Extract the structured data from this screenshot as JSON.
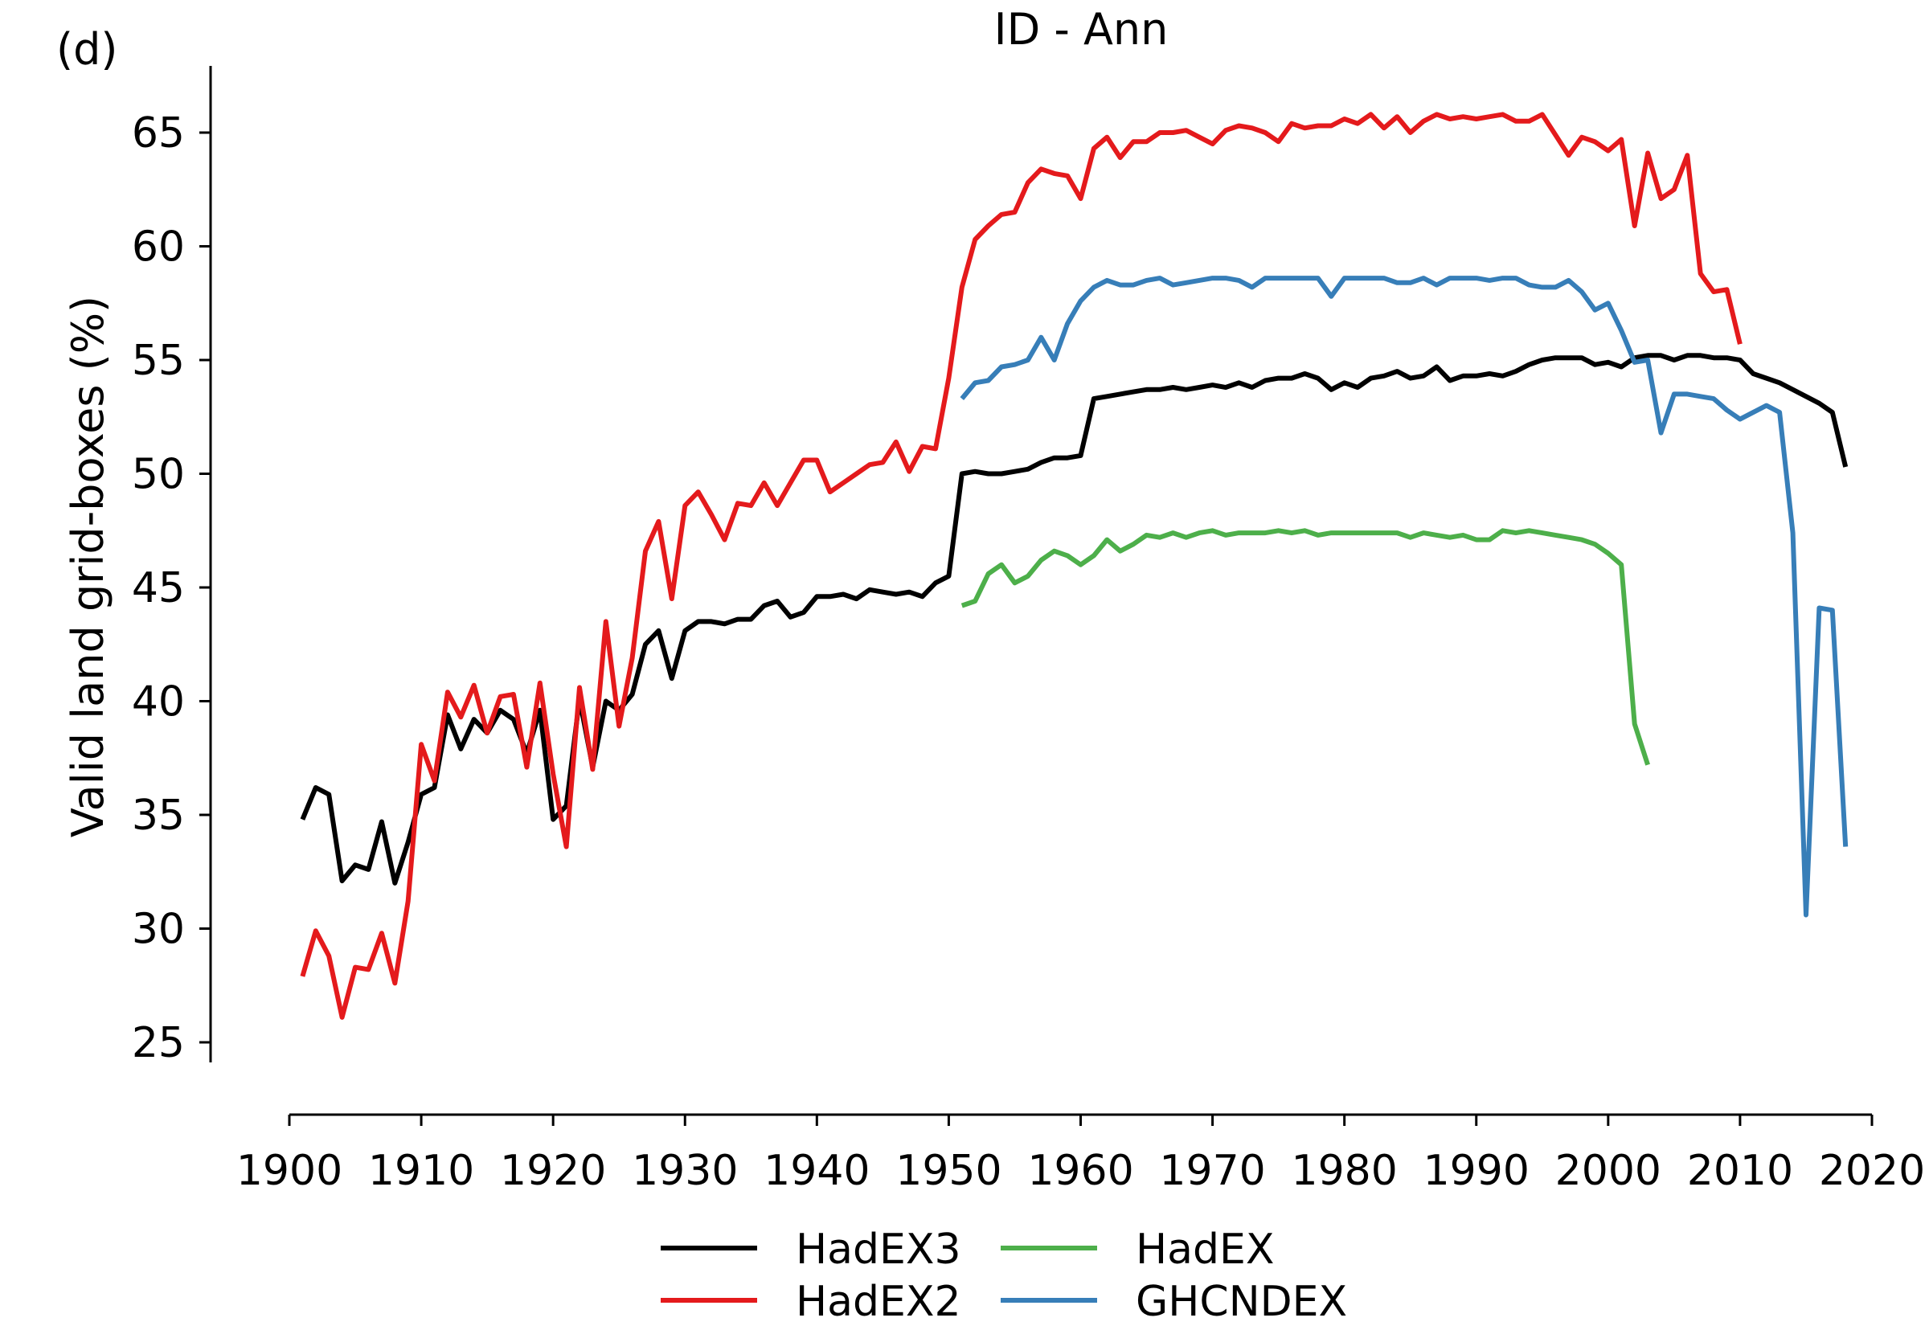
{
  "chart_data": {
    "type": "line",
    "panel_label": "(d)",
    "title": "ID - Ann",
    "xlabel": "",
    "ylabel": "Valid land grid-boxes (%)",
    "xlim": [
      1900,
      2020
    ],
    "ylim": [
      24.5,
      67.5
    ],
    "xticks": [
      1900,
      1910,
      1920,
      1930,
      1940,
      1950,
      1960,
      1970,
      1980,
      1990,
      2000,
      2010,
      2020
    ],
    "yticks": [
      25,
      30,
      35,
      40,
      45,
      50,
      55,
      60,
      65
    ],
    "grid": false,
    "legend_position": "bottom-center, two columns",
    "series": [
      {
        "name": "HadEX3",
        "color": "#000000",
        "x": [
          1901,
          1902,
          1903,
          1904,
          1905,
          1906,
          1907,
          1908,
          1909,
          1910,
          1911,
          1912,
          1913,
          1914,
          1915,
          1916,
          1917,
          1918,
          1919,
          1920,
          1921,
          1922,
          1923,
          1924,
          1925,
          1926,
          1927,
          1928,
          1929,
          1930,
          1931,
          1932,
          1933,
          1934,
          1935,
          1936,
          1937,
          1938,
          1939,
          1940,
          1941,
          1942,
          1943,
          1944,
          1945,
          1946,
          1947,
          1948,
          1949,
          1950,
          1951,
          1952,
          1953,
          1954,
          1955,
          1956,
          1957,
          1958,
          1959,
          1960,
          1961,
          1962,
          1963,
          1964,
          1965,
          1966,
          1967,
          1968,
          1969,
          1970,
          1971,
          1972,
          1973,
          1974,
          1975,
          1976,
          1977,
          1978,
          1979,
          1980,
          1981,
          1982,
          1983,
          1984,
          1985,
          1986,
          1987,
          1988,
          1989,
          1990,
          1991,
          1992,
          1993,
          1994,
          1995,
          1996,
          1997,
          1998,
          1999,
          2000,
          2001,
          2002,
          2003,
          2004,
          2005,
          2006,
          2007,
          2008,
          2009,
          2010,
          2011,
          2012,
          2013,
          2014,
          2015,
          2016,
          2017,
          2018
        ],
        "y": [
          34.8,
          36.2,
          35.9,
          32.1,
          32.8,
          32.6,
          34.7,
          32.0,
          33.8,
          35.9,
          36.2,
          39.4,
          37.9,
          39.2,
          38.6,
          39.6,
          39.2,
          37.7,
          39.6,
          34.8,
          35.4,
          40.1,
          37.1,
          40.0,
          39.6,
          40.3,
          42.5,
          43.1,
          41.0,
          43.1,
          43.5,
          43.5,
          43.4,
          43.6,
          43.6,
          44.2,
          44.4,
          43.7,
          43.9,
          44.6,
          44.6,
          44.7,
          44.5,
          44.9,
          44.8,
          44.7,
          44.8,
          44.6,
          45.2,
          45.5,
          50.0,
          50.1,
          50.0,
          50.0,
          50.1,
          50.2,
          50.5,
          50.7,
          50.7,
          50.8,
          53.3,
          53.4,
          53.5,
          53.6,
          53.7,
          53.7,
          53.8,
          53.7,
          53.8,
          53.9,
          53.8,
          54.0,
          53.8,
          54.1,
          54.2,
          54.2,
          54.4,
          54.2,
          53.7,
          54.0,
          53.8,
          54.2,
          54.3,
          54.5,
          54.2,
          54.3,
          54.7,
          54.1,
          54.3,
          54.3,
          54.4,
          54.3,
          54.5,
          54.8,
          55.0,
          55.1,
          55.1,
          55.1,
          54.8,
          54.9,
          54.7,
          55.1,
          55.2,
          55.2,
          55.0,
          55.2,
          55.2,
          55.1,
          55.1,
          55.0,
          54.4,
          54.2,
          54.0,
          53.7,
          53.4,
          53.1,
          52.7,
          50.3
        ]
      },
      {
        "name": "HadEX2",
        "color": "#e41a1c",
        "x": [
          1901,
          1902,
          1903,
          1904,
          1905,
          1906,
          1907,
          1908,
          1909,
          1910,
          1911,
          1912,
          1913,
          1914,
          1915,
          1916,
          1917,
          1918,
          1919,
          1920,
          1921,
          1922,
          1923,
          1924,
          1925,
          1926,
          1927,
          1928,
          1929,
          1930,
          1931,
          1932,
          1933,
          1934,
          1935,
          1936,
          1937,
          1938,
          1939,
          1940,
          1941,
          1942,
          1943,
          1944,
          1945,
          1946,
          1947,
          1948,
          1949,
          1950,
          1951,
          1952,
          1953,
          1954,
          1955,
          1956,
          1957,
          1958,
          1959,
          1960,
          1961,
          1962,
          1963,
          1964,
          1965,
          1966,
          1967,
          1968,
          1969,
          1970,
          1971,
          1972,
          1973,
          1974,
          1975,
          1976,
          1977,
          1978,
          1979,
          1980,
          1981,
          1982,
          1983,
          1984,
          1985,
          1986,
          1987,
          1988,
          1989,
          1990,
          1991,
          1992,
          1993,
          1994,
          1995,
          1996,
          1997,
          1998,
          1999,
          2000,
          2001,
          2002,
          2003,
          2004,
          2005,
          2006,
          2007,
          2008,
          2009,
          2010
        ],
        "y": [
          27.9,
          29.9,
          28.8,
          26.1,
          28.3,
          28.2,
          29.8,
          27.6,
          31.2,
          38.1,
          36.5,
          40.4,
          39.3,
          40.7,
          38.6,
          40.2,
          40.3,
          37.1,
          40.8,
          36.8,
          33.6,
          40.6,
          37.0,
          43.5,
          38.9,
          41.9,
          46.6,
          47.9,
          44.5,
          48.6,
          49.2,
          48.2,
          47.1,
          48.7,
          48.6,
          49.6,
          48.6,
          49.6,
          50.6,
          50.6,
          49.2,
          49.6,
          50.0,
          50.4,
          50.5,
          51.4,
          50.1,
          51.2,
          51.1,
          54.2,
          58.2,
          60.3,
          60.9,
          61.4,
          61.5,
          62.8,
          63.4,
          63.2,
          63.1,
          62.1,
          64.3,
          64.8,
          63.9,
          64.6,
          64.6,
          65.0,
          65.0,
          65.1,
          64.8,
          64.5,
          65.1,
          65.3,
          65.2,
          65.0,
          64.6,
          65.4,
          65.2,
          65.3,
          65.3,
          65.6,
          65.4,
          65.8,
          65.2,
          65.7,
          65.0,
          65.5,
          65.8,
          65.6,
          65.7,
          65.6,
          65.7,
          65.8,
          65.5,
          65.5,
          65.8,
          64.9,
          64.0,
          64.8,
          64.6,
          64.2,
          64.7,
          60.9,
          64.1,
          62.1,
          62.5,
          64.0,
          58.8,
          58.0,
          58.1,
          55.7
        ]
      },
      {
        "name": "HadEX",
        "color": "#4daf4a",
        "x": [
          1951,
          1952,
          1953,
          1954,
          1955,
          1956,
          1957,
          1958,
          1959,
          1960,
          1961,
          1962,
          1963,
          1964,
          1965,
          1966,
          1967,
          1968,
          1969,
          1970,
          1971,
          1972,
          1973,
          1974,
          1975,
          1976,
          1977,
          1978,
          1979,
          1980,
          1981,
          1982,
          1983,
          1984,
          1985,
          1986,
          1987,
          1988,
          1989,
          1990,
          1991,
          1992,
          1993,
          1994,
          1995,
          1996,
          1997,
          1998,
          1999,
          2000,
          2001,
          2002,
          2003
        ],
        "y": [
          44.2,
          44.4,
          45.6,
          46.0,
          45.2,
          45.5,
          46.2,
          46.6,
          46.4,
          46.0,
          46.4,
          47.1,
          46.6,
          46.9,
          47.3,
          47.2,
          47.4,
          47.2,
          47.4,
          47.5,
          47.3,
          47.4,
          47.4,
          47.4,
          47.5,
          47.4,
          47.5,
          47.3,
          47.4,
          47.4,
          47.4,
          47.4,
          47.4,
          47.4,
          47.2,
          47.4,
          47.3,
          47.2,
          47.3,
          47.1,
          47.1,
          47.5,
          47.4,
          47.5,
          47.4,
          47.3,
          47.2,
          47.1,
          46.9,
          46.5,
          46.0,
          39.0,
          37.2
        ]
      },
      {
        "name": "GHCNDEX",
        "color": "#377eb8",
        "x": [
          1951,
          1952,
          1953,
          1954,
          1955,
          1956,
          1957,
          1958,
          1959,
          1960,
          1961,
          1962,
          1963,
          1964,
          1965,
          1966,
          1967,
          1968,
          1969,
          1970,
          1971,
          1972,
          1973,
          1974,
          1975,
          1976,
          1977,
          1978,
          1979,
          1980,
          1981,
          1982,
          1983,
          1984,
          1985,
          1986,
          1987,
          1988,
          1989,
          1990,
          1991,
          1992,
          1993,
          1994,
          1995,
          1996,
          1997,
          1998,
          1999,
          2000,
          2001,
          2002,
          2003,
          2004,
          2005,
          2006,
          2007,
          2008,
          2009,
          2010,
          2011,
          2012,
          2013,
          2014,
          2015,
          2016,
          2017,
          2018
        ],
        "y": [
          53.3,
          54.0,
          54.1,
          54.7,
          54.8,
          55.0,
          56.0,
          55.0,
          56.6,
          57.6,
          58.2,
          58.5,
          58.3,
          58.3,
          58.5,
          58.6,
          58.3,
          58.4,
          58.5,
          58.6,
          58.6,
          58.5,
          58.2,
          58.6,
          58.6,
          58.6,
          58.6,
          58.6,
          57.8,
          58.6,
          58.6,
          58.6,
          58.6,
          58.4,
          58.4,
          58.6,
          58.3,
          58.6,
          58.6,
          58.6,
          58.5,
          58.6,
          58.6,
          58.3,
          58.2,
          58.2,
          58.5,
          58.0,
          57.2,
          57.5,
          56.3,
          54.9,
          55.0,
          51.8,
          53.5,
          53.5,
          53.4,
          53.3,
          52.8,
          52.4,
          52.7,
          53.0,
          52.7,
          47.4,
          30.6,
          44.1,
          44.0,
          33.6
        ]
      }
    ]
  }
}
